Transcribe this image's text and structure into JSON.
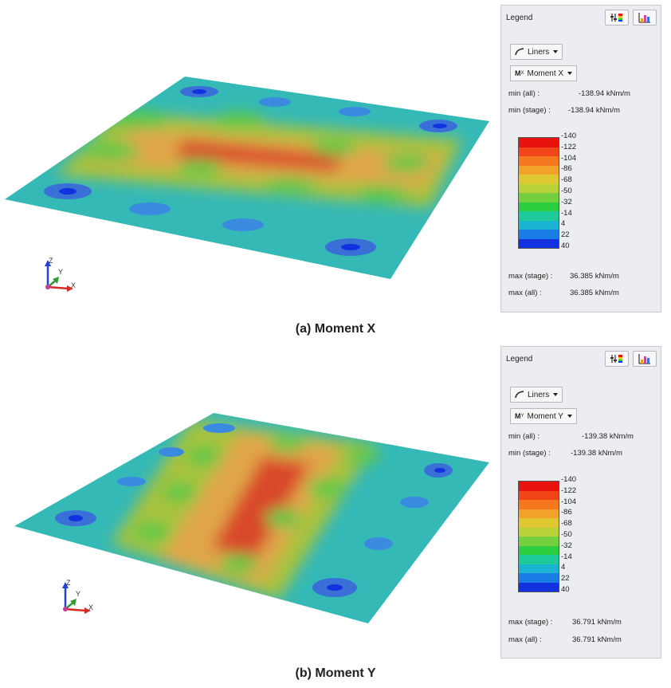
{
  "panels": [
    {
      "caption": "(a) Moment X",
      "legend": {
        "title": "Legend",
        "dropdown1": "Liners",
        "dropdown2_icon": "M",
        "dropdown2_sup": "X",
        "dropdown2": "Moment X",
        "min_all_label": "min (all) :",
        "min_all_value": "-138.94 kNm/m",
        "min_stage_label": "min (stage) :",
        "min_stage_value": "-138.94 kNm/m",
        "ticks": [
          "-140",
          "-122",
          "-104",
          "-86",
          "-68",
          "-50",
          "-32",
          "-14",
          "4",
          "22",
          "40"
        ],
        "max_stage_label": "max (stage) :",
        "max_stage_value": "36.385 kNm/m",
        "max_all_label": "max (all) :",
        "max_all_value": "36.385 kNm/m"
      },
      "axes": {
        "z": "Z",
        "y": "Y",
        "x": "X"
      }
    },
    {
      "caption": "(b) Moment Y",
      "legend": {
        "title": "Legend",
        "dropdown1": "Liners",
        "dropdown2_icon": "M",
        "dropdown2_sup": "Y",
        "dropdown2": "Moment Y",
        "min_all_label": "min (all) :",
        "min_all_value": "-139.38 kNm/m",
        "min_stage_label": "min (stage) :",
        "min_stage_value": "-139.38 kNm/m",
        "ticks": [
          "-140",
          "-122",
          "-104",
          "-86",
          "-68",
          "-50",
          "-32",
          "-14",
          "4",
          "22",
          "40"
        ],
        "max_stage_label": "max (stage) :",
        "max_stage_value": "36.791 kNm/m",
        "max_all_label": "max (all) :",
        "max_all_value": "36.791 kNm/m"
      },
      "axes": {
        "z": "Z",
        "y": "Y",
        "x": "X"
      }
    }
  ],
  "colormap": [
    "#e8120e",
    "#f2461a",
    "#f5781e",
    "#f2a22a",
    "#e0c832",
    "#b8d23a",
    "#74d03c",
    "#2ccd3e",
    "#1ec99a",
    "#1ab4d2",
    "#1a7de6",
    "#1232e0"
  ],
  "colors": {
    "plate_base": "#35b9b6",
    "high_zone": "#a8c23e",
    "warm_zone": "#e0a64a",
    "peak_zone": "#d9482c",
    "blue_spot": "#3a6fd8",
    "green_spot": "#5cc84a"
  },
  "icons": [
    "settings-sliders-icon",
    "chart-view-icon",
    "liners-curve-icon",
    "chevron-down-icon"
  ]
}
